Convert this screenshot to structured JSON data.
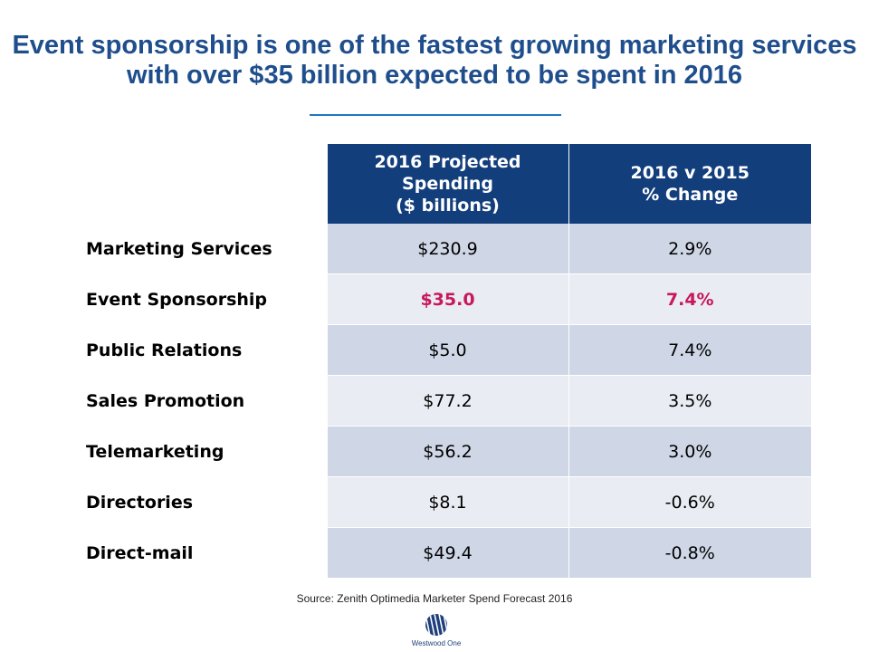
{
  "title": "Event sponsorship is one of the fastest growing marketing services with over $35 billion expected to be spent in 2016",
  "source": "Source: Zenith Optimedia Marketer Spend Forecast 2016",
  "logo_text": "Westwood One",
  "colors": {
    "title": "#1f4e8c",
    "header_bg": "#133e7c",
    "row_dark": "#cfd6e6",
    "row_light": "#e9ecf3",
    "highlight": "#c8175d"
  },
  "chart_data": {
    "type": "table",
    "columns": [
      {
        "line1": "2016 Projected",
        "line2": "Spending",
        "line3": "($ billions)"
      },
      {
        "line1": "2016 v 2015",
        "line2": "% Change"
      }
    ],
    "rows": [
      {
        "label": "Marketing Services",
        "spending": "$230.9",
        "change": "2.9%",
        "highlight": false
      },
      {
        "label": "Event Sponsorship",
        "spending": "$35.0",
        "change": "7.4%",
        "highlight": true
      },
      {
        "label": "Public Relations",
        "spending": "$5.0",
        "change": "7.4%",
        "highlight": false
      },
      {
        "label": "Sales Promotion",
        "spending": "$77.2",
        "change": "3.5%",
        "highlight": false
      },
      {
        "label": "Telemarketing",
        "spending": "$56.2",
        "change": "3.0%",
        "highlight": false
      },
      {
        "label": "Directories",
        "spending": "$8.1",
        "change": "-0.6%",
        "highlight": false
      },
      {
        "label": "Direct-mail",
        "spending": "$49.4",
        "change": "-0.8%",
        "highlight": false
      }
    ]
  }
}
